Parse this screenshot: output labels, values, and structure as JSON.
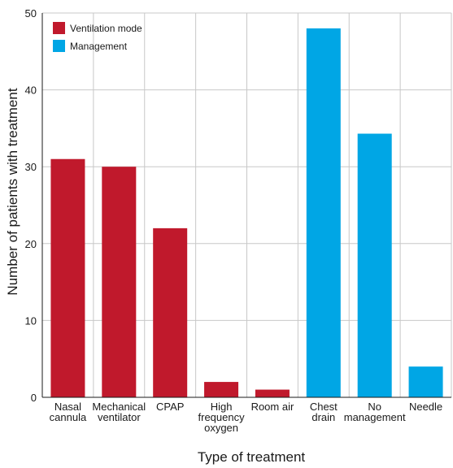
{
  "chart_data": {
    "type": "bar",
    "title": "",
    "xlabel": "Type of treatment",
    "ylabel": "Number of patients with treatment",
    "ylim": [
      0,
      50
    ],
    "yticks": [
      0,
      10,
      20,
      30,
      40,
      50
    ],
    "grid": true,
    "legend_position": "top-left",
    "categories": [
      [
        "Nasal",
        "cannula"
      ],
      [
        "Mechanical",
        "ventilator"
      ],
      [
        "CPAP"
      ],
      [
        "High",
        "frequency",
        "oxygen"
      ],
      [
        "Room air"
      ],
      [
        "Chest",
        "drain"
      ],
      [
        "No",
        "management"
      ],
      [
        "Needle"
      ]
    ],
    "series": [
      {
        "name": "Ventilation mode",
        "color": "#c0192c",
        "values": [
          31,
          30,
          22,
          2,
          1,
          null,
          null,
          null
        ]
      },
      {
        "name": "Management",
        "color": "#00a6e5",
        "values": [
          null,
          null,
          null,
          null,
          null,
          48,
          34.3,
          4
        ]
      }
    ]
  }
}
